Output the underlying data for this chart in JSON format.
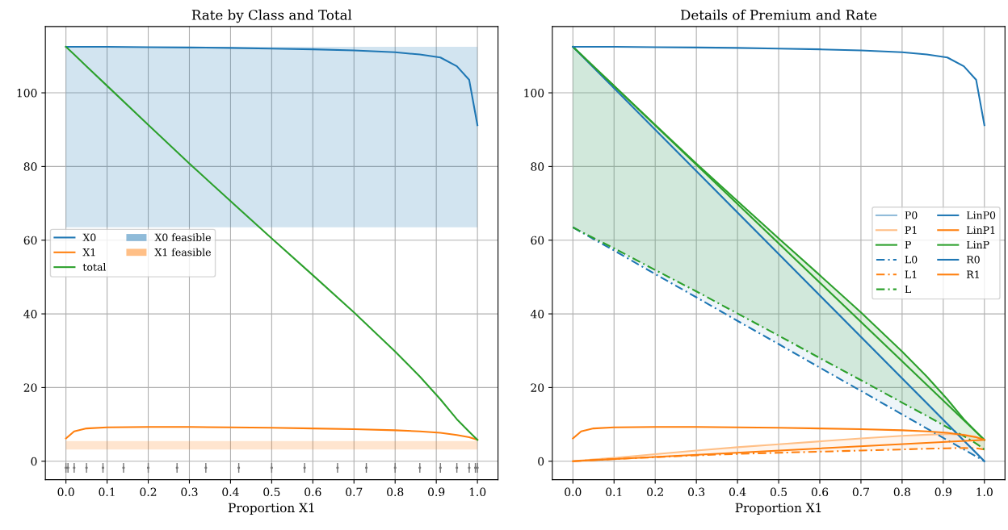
{
  "chart_data": [
    {
      "type": "line",
      "title": "Rate by Class and Total",
      "xlabel": "Proportion X1",
      "x": [
        0,
        0.02,
        0.05,
        0.1,
        0.2,
        0.3,
        0.4,
        0.5,
        0.6,
        0.7,
        0.8,
        0.86,
        0.91,
        0.95,
        0.98,
        1.0
      ],
      "series": [
        {
          "name": "X0",
          "color": "#1f77b4",
          "values": [
            112.5,
            112.5,
            112.5,
            112.5,
            112.4,
            112.3,
            112.2,
            112.0,
            111.8,
            111.5,
            111.0,
            110.4,
            109.6,
            107.2,
            103.5,
            91.2
          ]
        },
        {
          "name": "X1",
          "color": "#ff7f0e",
          "values": [
            6.2,
            8.1,
            8.9,
            9.2,
            9.3,
            9.3,
            9.2,
            9.1,
            8.9,
            8.7,
            8.4,
            8.1,
            7.7,
            7.1,
            6.5,
            5.8
          ]
        },
        {
          "name": "total",
          "color": "#2ca02c",
          "values": [
            112.5,
            110.4,
            107.2,
            101.9,
            91.3,
            80.8,
            70.6,
            60.5,
            50.5,
            40.4,
            29.8,
            23.0,
            16.8,
            11.4,
            8.0,
            5.8
          ]
        },
        {
          "type": "scatter",
          "color": "#777777",
          "marker": "circle",
          "errors": [
            1.3,
            1.3,
            1.3,
            1.3,
            1.3,
            1.3,
            1.3,
            1.3,
            1.3,
            1.3,
            1.3,
            1.3,
            1.3,
            1.3,
            1.3,
            1.3,
            1.3,
            1.3,
            1.3,
            1.3,
            1.3
          ],
          "x": [
            0,
            0.005,
            0.02,
            0.05,
            0.09,
            0.14,
            0.2,
            0.27,
            0.34,
            0.42,
            0.5,
            0.58,
            0.66,
            0.73,
            0.8,
            0.86,
            0.91,
            0.95,
            0.98,
            0.995,
            1.0
          ],
          "values": [
            -1.8,
            -1.8,
            -1.8,
            -1.8,
            -1.8,
            -1.8,
            -1.8,
            -1.8,
            -1.8,
            -1.8,
            -1.8,
            -1.8,
            -1.8,
            -1.8,
            -1.8,
            -1.8,
            -1.8,
            -1.8,
            -1.8,
            -1.8,
            -1.8
          ]
        }
      ],
      "bands": [
        {
          "axis": "y",
          "from": 63.5,
          "to": 112.5,
          "label": "X0 feasible",
          "color": "#1f77b4"
        },
        {
          "axis": "y",
          "from": 3.2,
          "to": 5.5,
          "label": "X1 feasible",
          "color": "#ff7f0e"
        }
      ],
      "xlim": [
        -0.05,
        1.05
      ],
      "ylim": [
        -5,
        118
      ],
      "xticks": [
        {
          "value": 0,
          "label": "0.0"
        },
        {
          "value": 0.1,
          "label": "0.1"
        },
        {
          "value": 0.2,
          "label": "0.2"
        },
        {
          "value": 0.3,
          "label": "0.3"
        },
        {
          "value": 0.4,
          "label": "0.4"
        },
        {
          "value": 0.5,
          "label": "0.5"
        },
        {
          "value": 0.6,
          "label": "0.6"
        },
        {
          "value": 0.7,
          "label": "0.7"
        },
        {
          "value": 0.8,
          "label": "0.8"
        },
        {
          "value": 0.9,
          "label": "0.9"
        },
        {
          "value": 1,
          "label": "1.0"
        }
      ],
      "yticks": [
        0,
        20,
        40,
        60,
        80,
        100
      ],
      "grid": true,
      "legend": "left"
    },
    {
      "type": "line",
      "title": "Details of Premium and Rate",
      "xlabel": "Proportion X1",
      "x": [
        0,
        0.02,
        0.05,
        0.1,
        0.2,
        0.3,
        0.4,
        0.5,
        0.6,
        0.7,
        0.8,
        0.86,
        0.91,
        0.95,
        0.98,
        1.0
      ],
      "series": [
        {
          "name": "P0",
          "color": "#8fbbd9",
          "values": [
            112.5,
            110.3,
            106.9,
            101.3,
            90.0,
            78.8,
            67.5,
            56.3,
            45.0,
            33.8,
            22.5,
            15.8,
            10.1,
            5.6,
            2.3,
            0
          ],
          "lower": [
            63.5,
            62.2,
            60.3,
            57.2,
            50.8,
            44.5,
            38.1,
            31.8,
            25.4,
            19.1,
            12.7,
            8.9,
            5.7,
            3.2,
            1.3,
            0
          ],
          "upper": [
            112.5,
            110.3,
            106.9,
            101.3,
            90.0,
            78.8,
            67.5,
            56.3,
            45.0,
            33.8,
            22.5,
            15.8,
            10.1,
            5.6,
            2.3,
            0
          ]
        },
        {
          "name": "P1",
          "color": "#ffbf86",
          "values": [
            0,
            0.2,
            0.5,
            0.9,
            1.9,
            2.9,
            3.8,
            4.6,
            5.4,
            6.2,
            6.9,
            7.2,
            7.4,
            7.2,
            6.6,
            5.8
          ],
          "lower": [
            0,
            0.1,
            0.3,
            0.6,
            1.1,
            1.6,
            2.0,
            2.3,
            2.6,
            2.9,
            3.2,
            3.4,
            3.5,
            3.6,
            3.5,
            3.2
          ],
          "upper": [
            0,
            0.2,
            0.5,
            0.9,
            1.9,
            2.9,
            3.8,
            4.6,
            5.4,
            6.2,
            6.9,
            7.2,
            7.4,
            7.2,
            6.6,
            5.8
          ]
        },
        {
          "name": "P",
          "color": "#2ca02c",
          "values": [
            112.5,
            110.4,
            107.2,
            101.9,
            91.3,
            80.8,
            70.6,
            60.5,
            50.5,
            40.4,
            29.8,
            23.0,
            16.8,
            11.4,
            8.0,
            5.8
          ],
          "lower": [
            63.5,
            62.3,
            60.6,
            57.8,
            51.9,
            46.1,
            40.1,
            34.1,
            28.0,
            22.0,
            15.9,
            12.3,
            9.2,
            6.8,
            4.8,
            3.2
          ],
          "upper": [
            112.5,
            110.4,
            107.2,
            101.9,
            91.3,
            80.8,
            70.6,
            60.5,
            50.5,
            40.4,
            29.8,
            23.0,
            16.8,
            11.4,
            8.0,
            5.8
          ]
        },
        {
          "name": "L0",
          "color": "#1f77b4",
          "line_style": "dashed",
          "values": [
            63.5,
            62.2,
            60.3,
            57.2,
            50.8,
            44.5,
            38.1,
            31.8,
            25.4,
            19.1,
            12.7,
            8.9,
            5.7,
            3.2,
            1.3,
            0
          ]
        },
        {
          "name": "L1",
          "color": "#ff7f0e",
          "line_style": "dashed",
          "values": [
            0,
            0.1,
            0.3,
            0.6,
            1.1,
            1.6,
            2.0,
            2.3,
            2.6,
            2.9,
            3.2,
            3.4,
            3.5,
            3.6,
            3.5,
            3.2
          ]
        },
        {
          "name": "L",
          "color": "#2ca02c",
          "line_style": "dashed",
          "values": [
            63.5,
            62.3,
            60.6,
            57.8,
            51.9,
            46.1,
            40.1,
            34.1,
            28.0,
            22.0,
            15.9,
            12.3,
            9.2,
            6.8,
            4.8,
            3.2
          ]
        },
        {
          "name": "LinP0",
          "color": "#1f77b4",
          "x": [
            0,
            1.0
          ],
          "values": [
            112.5,
            0
          ]
        },
        {
          "name": "LinP1",
          "color": "#ff7f0e",
          "x": [
            0,
            1.0
          ],
          "values": [
            0,
            5.8
          ]
        },
        {
          "name": "LinP",
          "color": "#2ca02c",
          "x": [
            0,
            1.0
          ],
          "values": [
            112.5,
            5.8
          ]
        },
        {
          "name": "R0",
          "color": "#1f77b4",
          "values": [
            112.5,
            112.5,
            112.5,
            112.5,
            112.4,
            112.3,
            112.2,
            112.0,
            111.8,
            111.5,
            111.0,
            110.4,
            109.6,
            107.2,
            103.5,
            91.2
          ]
        },
        {
          "name": "R1",
          "color": "#ff7f0e",
          "values": [
            6.2,
            8.1,
            8.9,
            9.2,
            9.3,
            9.3,
            9.2,
            9.1,
            8.9,
            8.7,
            8.4,
            8.1,
            7.7,
            7.1,
            6.5,
            5.8
          ]
        }
      ],
      "xlim": [
        -0.05,
        1.05
      ],
      "ylim": [
        -5,
        118
      ],
      "xticks": [
        {
          "value": 0,
          "label": "0.0"
        },
        {
          "value": 0.1,
          "label": "0.1"
        },
        {
          "value": 0.2,
          "label": "0.2"
        },
        {
          "value": 0.3,
          "label": "0.3"
        },
        {
          "value": 0.4,
          "label": "0.4"
        },
        {
          "value": 0.5,
          "label": "0.5"
        },
        {
          "value": 0.6,
          "label": "0.6"
        },
        {
          "value": 0.7,
          "label": "0.7"
        },
        {
          "value": 0.8,
          "label": "0.8"
        },
        {
          "value": 0.9,
          "label": "0.9"
        },
        {
          "value": 1,
          "label": "1.0"
        }
      ],
      "yticks": [
        0,
        20,
        40,
        60,
        80,
        100
      ],
      "grid": true,
      "legend": "right"
    }
  ]
}
